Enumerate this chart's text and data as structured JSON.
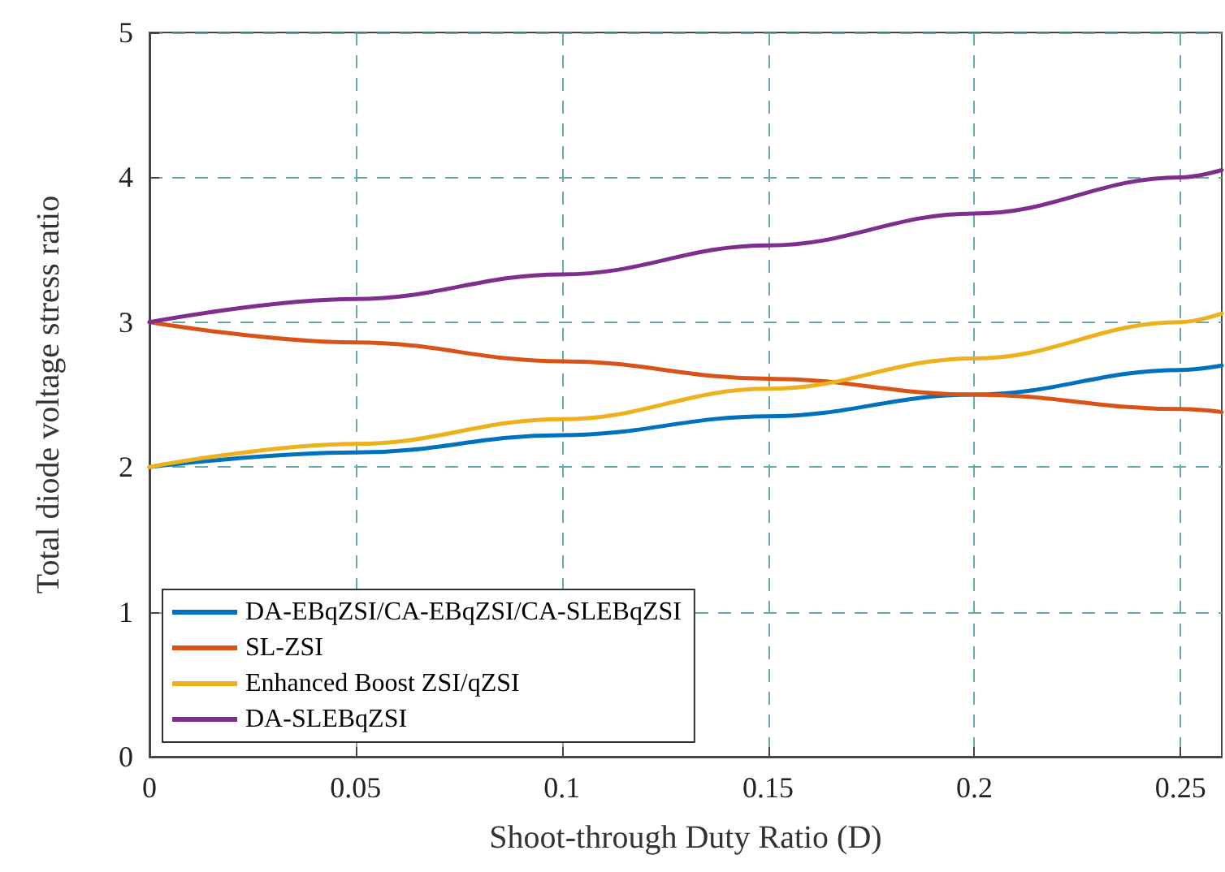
{
  "chart_data": {
    "type": "line",
    "xlabel": "Shoot-through Duty Ratio (D)",
    "ylabel": "Total diode voltage stress ratio",
    "x": [
      0,
      0.05,
      0.1,
      0.15,
      0.2,
      0.25,
      0.26
    ],
    "series": [
      {
        "name": "DA-EBqZSI/CA-EBqZSI/CA-SLEBqZSI",
        "color": "#0072bd",
        "values": [
          2,
          2.1,
          2.22,
          2.35,
          2.5,
          2.67,
          2.7
        ]
      },
      {
        "name": "SL-ZSI",
        "color": "#d95319",
        "values": [
          3,
          2.86,
          2.73,
          2.61,
          2.5,
          2.4,
          2.38
        ]
      },
      {
        "name": "Enhanced Boost ZSI/qZSI",
        "color": "#edb120",
        "values": [
          2,
          2.16,
          2.33,
          2.54,
          2.75,
          3,
          3.06
        ]
      },
      {
        "name": "DA-SLEBqZSI",
        "color": "#7e2f8e",
        "values": [
          3,
          3.16,
          3.33,
          3.53,
          3.75,
          4,
          4.05
        ]
      }
    ],
    "xlim": [
      0,
      0.26
    ],
    "xticks": [
      0,
      0.05,
      0.1,
      0.15,
      0.2,
      0.25
    ],
    "ylim": [
      0,
      5
    ],
    "yticks": [
      0,
      1,
      2,
      3,
      4,
      5
    ],
    "grid": true,
    "legend": "bottom left",
    "marker": "none",
    "line_style": "solid"
  }
}
